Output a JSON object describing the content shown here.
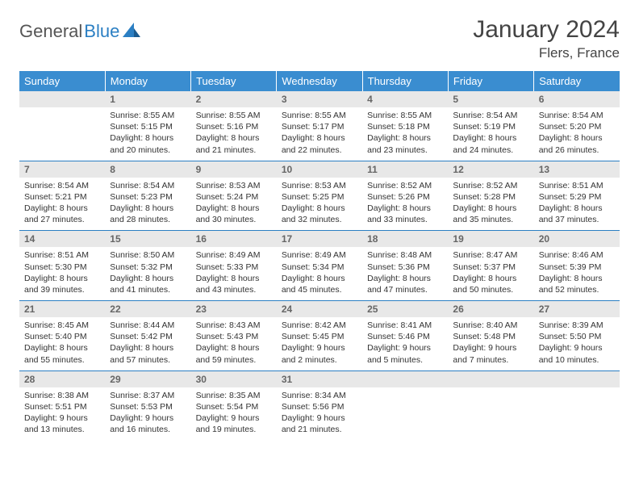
{
  "brand": {
    "part1": "General",
    "part2": "Blue",
    "icon_color": "#2b7fc3"
  },
  "title": "January 2024",
  "location": "Flers, France",
  "header_bg": "#3a8dd0",
  "divider_color": "#2b7fc3",
  "daynum_bg": "#e8e8e8",
  "days": [
    "Sunday",
    "Monday",
    "Tuesday",
    "Wednesday",
    "Thursday",
    "Friday",
    "Saturday"
  ],
  "weeks": [
    {
      "nums": [
        "",
        "1",
        "2",
        "3",
        "4",
        "5",
        "6"
      ],
      "cells": [
        null,
        {
          "sunrise": "Sunrise: 8:55 AM",
          "sunset": "Sunset: 5:15 PM",
          "day1": "Daylight: 8 hours",
          "day2": "and 20 minutes."
        },
        {
          "sunrise": "Sunrise: 8:55 AM",
          "sunset": "Sunset: 5:16 PM",
          "day1": "Daylight: 8 hours",
          "day2": "and 21 minutes."
        },
        {
          "sunrise": "Sunrise: 8:55 AM",
          "sunset": "Sunset: 5:17 PM",
          "day1": "Daylight: 8 hours",
          "day2": "and 22 minutes."
        },
        {
          "sunrise": "Sunrise: 8:55 AM",
          "sunset": "Sunset: 5:18 PM",
          "day1": "Daylight: 8 hours",
          "day2": "and 23 minutes."
        },
        {
          "sunrise": "Sunrise: 8:54 AM",
          "sunset": "Sunset: 5:19 PM",
          "day1": "Daylight: 8 hours",
          "day2": "and 24 minutes."
        },
        {
          "sunrise": "Sunrise: 8:54 AM",
          "sunset": "Sunset: 5:20 PM",
          "day1": "Daylight: 8 hours",
          "day2": "and 26 minutes."
        }
      ]
    },
    {
      "nums": [
        "7",
        "8",
        "9",
        "10",
        "11",
        "12",
        "13"
      ],
      "cells": [
        {
          "sunrise": "Sunrise: 8:54 AM",
          "sunset": "Sunset: 5:21 PM",
          "day1": "Daylight: 8 hours",
          "day2": "and 27 minutes."
        },
        {
          "sunrise": "Sunrise: 8:54 AM",
          "sunset": "Sunset: 5:23 PM",
          "day1": "Daylight: 8 hours",
          "day2": "and 28 minutes."
        },
        {
          "sunrise": "Sunrise: 8:53 AM",
          "sunset": "Sunset: 5:24 PM",
          "day1": "Daylight: 8 hours",
          "day2": "and 30 minutes."
        },
        {
          "sunrise": "Sunrise: 8:53 AM",
          "sunset": "Sunset: 5:25 PM",
          "day1": "Daylight: 8 hours",
          "day2": "and 32 minutes."
        },
        {
          "sunrise": "Sunrise: 8:52 AM",
          "sunset": "Sunset: 5:26 PM",
          "day1": "Daylight: 8 hours",
          "day2": "and 33 minutes."
        },
        {
          "sunrise": "Sunrise: 8:52 AM",
          "sunset": "Sunset: 5:28 PM",
          "day1": "Daylight: 8 hours",
          "day2": "and 35 minutes."
        },
        {
          "sunrise": "Sunrise: 8:51 AM",
          "sunset": "Sunset: 5:29 PM",
          "day1": "Daylight: 8 hours",
          "day2": "and 37 minutes."
        }
      ]
    },
    {
      "nums": [
        "14",
        "15",
        "16",
        "17",
        "18",
        "19",
        "20"
      ],
      "cells": [
        {
          "sunrise": "Sunrise: 8:51 AM",
          "sunset": "Sunset: 5:30 PM",
          "day1": "Daylight: 8 hours",
          "day2": "and 39 minutes."
        },
        {
          "sunrise": "Sunrise: 8:50 AM",
          "sunset": "Sunset: 5:32 PM",
          "day1": "Daylight: 8 hours",
          "day2": "and 41 minutes."
        },
        {
          "sunrise": "Sunrise: 8:49 AM",
          "sunset": "Sunset: 5:33 PM",
          "day1": "Daylight: 8 hours",
          "day2": "and 43 minutes."
        },
        {
          "sunrise": "Sunrise: 8:49 AM",
          "sunset": "Sunset: 5:34 PM",
          "day1": "Daylight: 8 hours",
          "day2": "and 45 minutes."
        },
        {
          "sunrise": "Sunrise: 8:48 AM",
          "sunset": "Sunset: 5:36 PM",
          "day1": "Daylight: 8 hours",
          "day2": "and 47 minutes."
        },
        {
          "sunrise": "Sunrise: 8:47 AM",
          "sunset": "Sunset: 5:37 PM",
          "day1": "Daylight: 8 hours",
          "day2": "and 50 minutes."
        },
        {
          "sunrise": "Sunrise: 8:46 AM",
          "sunset": "Sunset: 5:39 PM",
          "day1": "Daylight: 8 hours",
          "day2": "and 52 minutes."
        }
      ]
    },
    {
      "nums": [
        "21",
        "22",
        "23",
        "24",
        "25",
        "26",
        "27"
      ],
      "cells": [
        {
          "sunrise": "Sunrise: 8:45 AM",
          "sunset": "Sunset: 5:40 PM",
          "day1": "Daylight: 8 hours",
          "day2": "and 55 minutes."
        },
        {
          "sunrise": "Sunrise: 8:44 AM",
          "sunset": "Sunset: 5:42 PM",
          "day1": "Daylight: 8 hours",
          "day2": "and 57 minutes."
        },
        {
          "sunrise": "Sunrise: 8:43 AM",
          "sunset": "Sunset: 5:43 PM",
          "day1": "Daylight: 8 hours",
          "day2": "and 59 minutes."
        },
        {
          "sunrise": "Sunrise: 8:42 AM",
          "sunset": "Sunset: 5:45 PM",
          "day1": "Daylight: 9 hours",
          "day2": "and 2 minutes."
        },
        {
          "sunrise": "Sunrise: 8:41 AM",
          "sunset": "Sunset: 5:46 PM",
          "day1": "Daylight: 9 hours",
          "day2": "and 5 minutes."
        },
        {
          "sunrise": "Sunrise: 8:40 AM",
          "sunset": "Sunset: 5:48 PM",
          "day1": "Daylight: 9 hours",
          "day2": "and 7 minutes."
        },
        {
          "sunrise": "Sunrise: 8:39 AM",
          "sunset": "Sunset: 5:50 PM",
          "day1": "Daylight: 9 hours",
          "day2": "and 10 minutes."
        }
      ]
    },
    {
      "nums": [
        "28",
        "29",
        "30",
        "31",
        "",
        "",
        ""
      ],
      "cells": [
        {
          "sunrise": "Sunrise: 8:38 AM",
          "sunset": "Sunset: 5:51 PM",
          "day1": "Daylight: 9 hours",
          "day2": "and 13 minutes."
        },
        {
          "sunrise": "Sunrise: 8:37 AM",
          "sunset": "Sunset: 5:53 PM",
          "day1": "Daylight: 9 hours",
          "day2": "and 16 minutes."
        },
        {
          "sunrise": "Sunrise: 8:35 AM",
          "sunset": "Sunset: 5:54 PM",
          "day1": "Daylight: 9 hours",
          "day2": "and 19 minutes."
        },
        {
          "sunrise": "Sunrise: 8:34 AM",
          "sunset": "Sunset: 5:56 PM",
          "day1": "Daylight: 9 hours",
          "day2": "and 21 minutes."
        },
        null,
        null,
        null
      ]
    }
  ]
}
